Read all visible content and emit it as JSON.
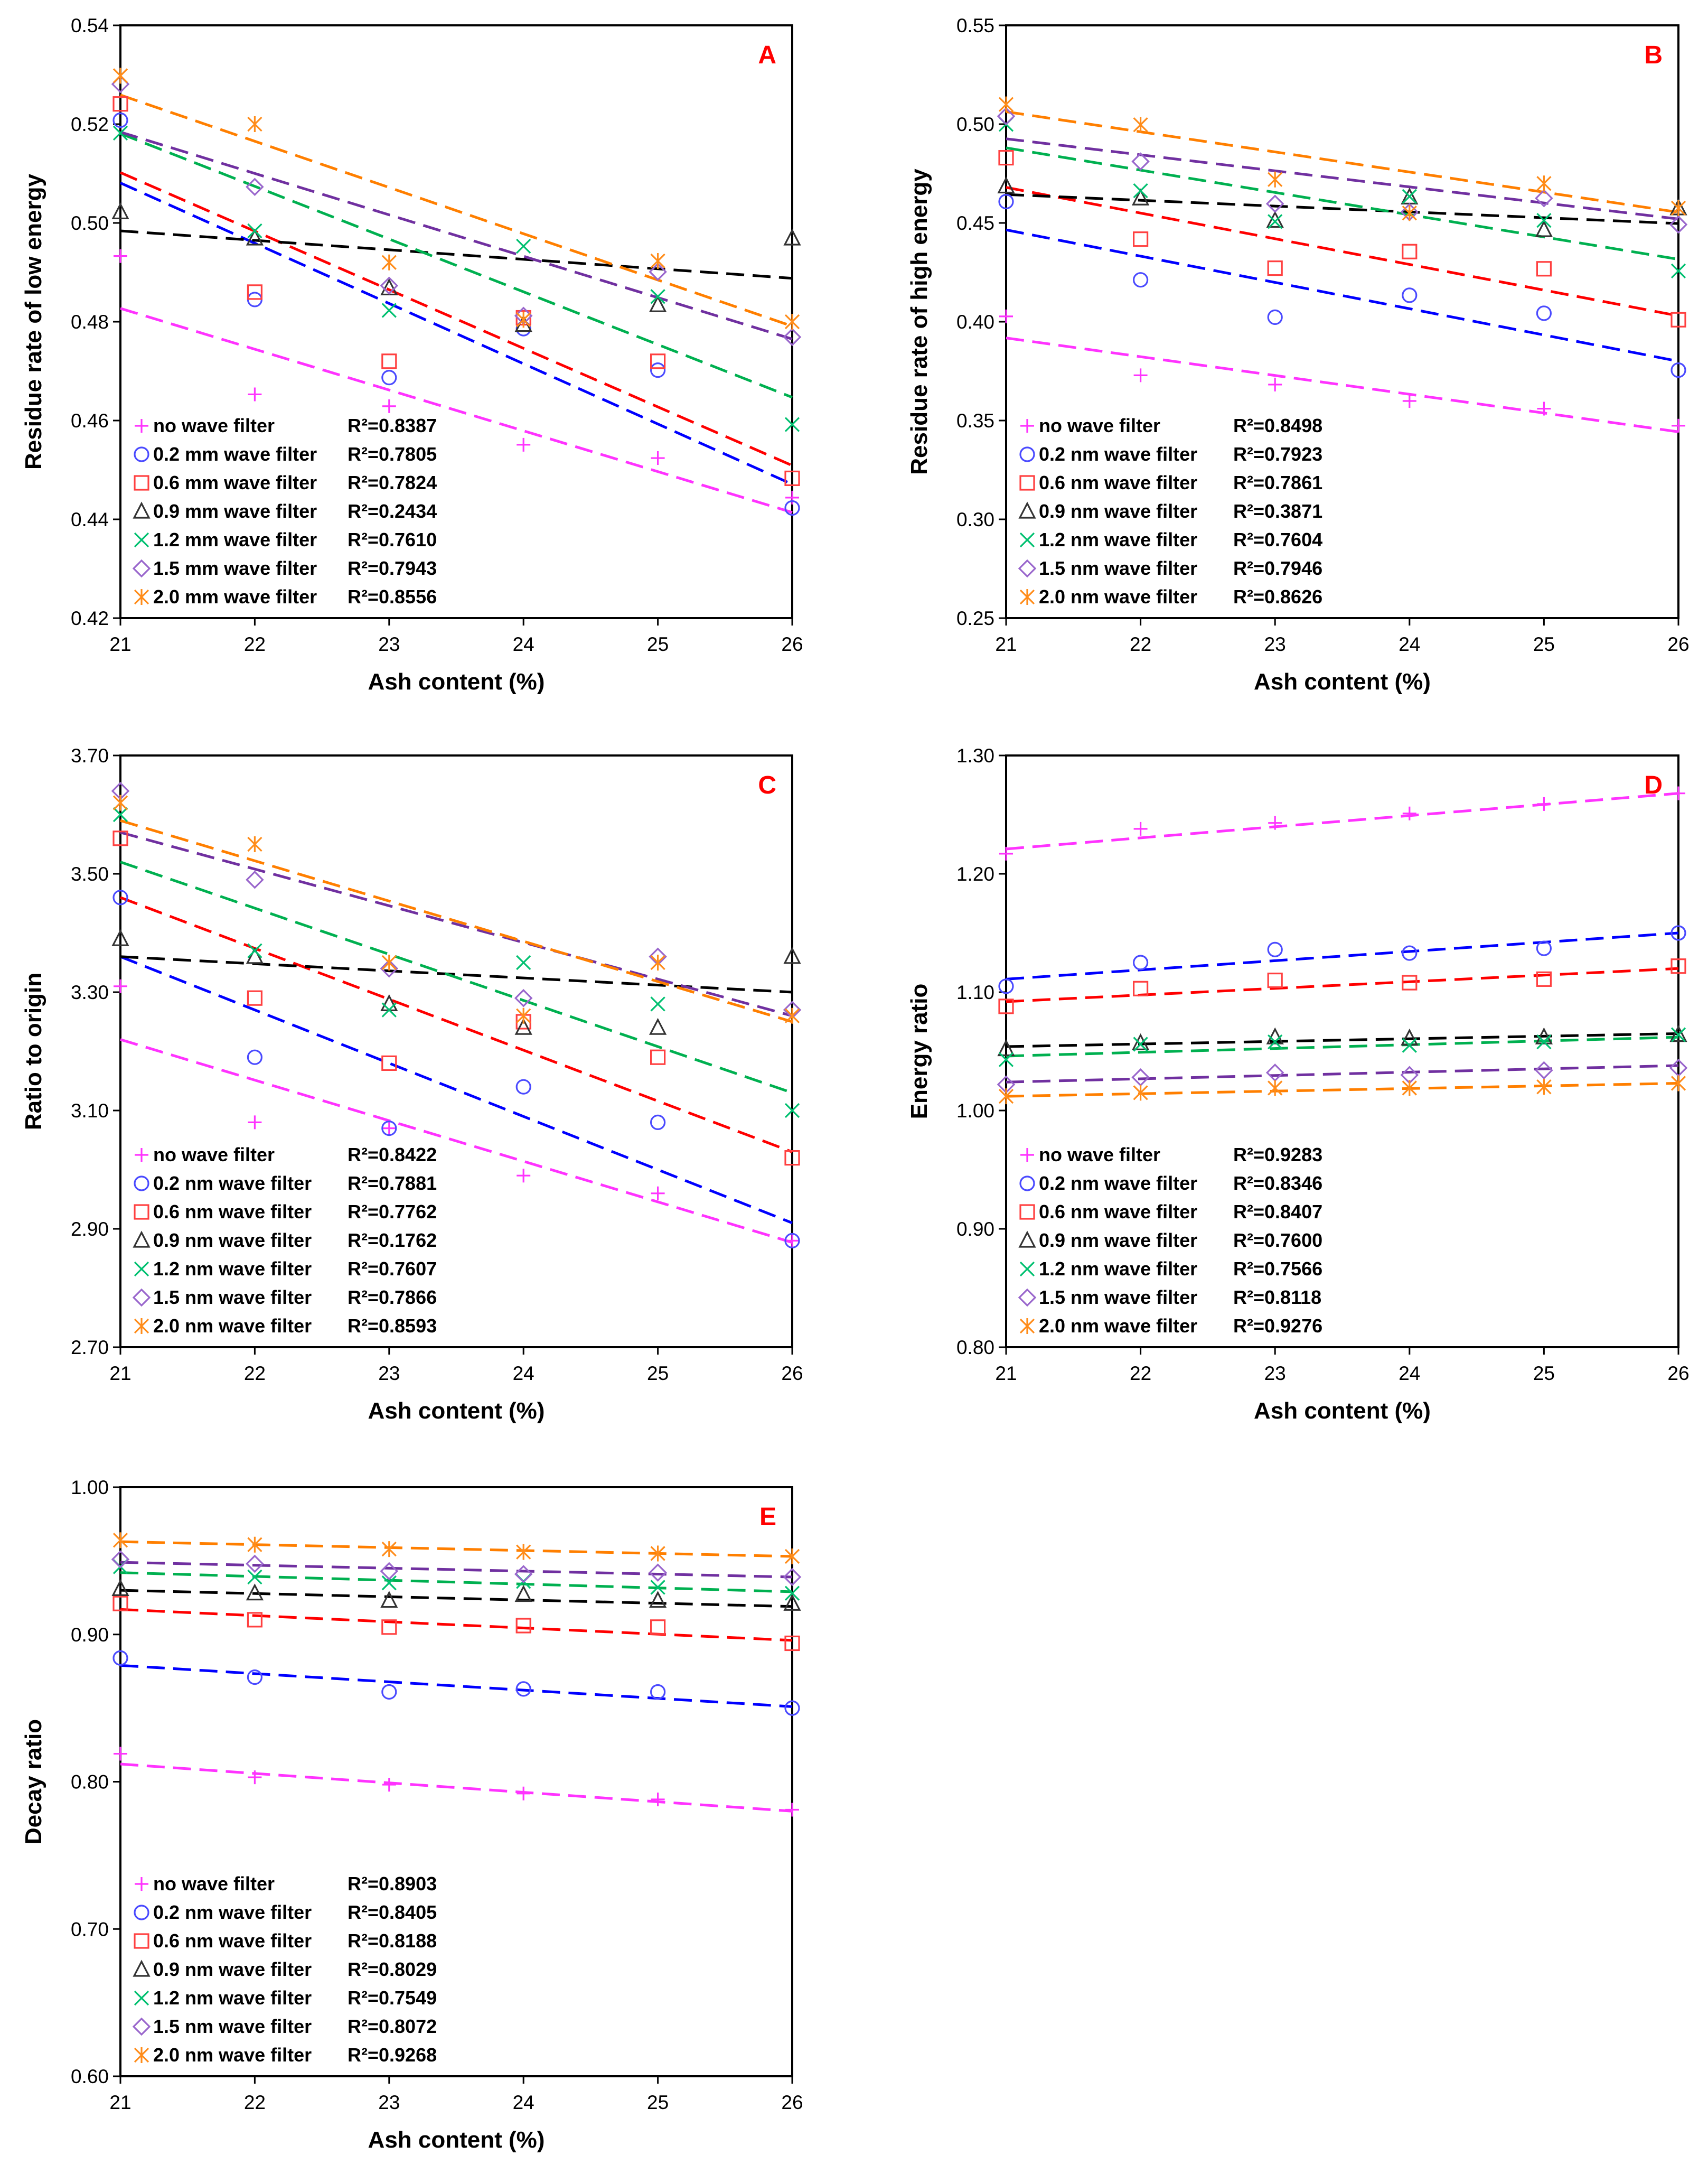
{
  "chart_data": [
    {
      "type": "scatter",
      "panel_letter": "A",
      "xlabel": "Ash content (%)",
      "ylabel": "Residue rate of low energy",
      "x": [
        21,
        22,
        23,
        24,
        25,
        26
      ],
      "xlim": [
        21,
        26
      ],
      "ylim": [
        0.42,
        0.54
      ],
      "y_ticks": [
        "0.42",
        "0.44",
        "0.46",
        "0.48",
        "0.50",
        "0.52",
        "0.54"
      ],
      "grid": false,
      "legend_position": "bottom-left",
      "series": [
        {
          "name": "no wave filter",
          "r2": "R²=0.8387",
          "values": [
            0.4933,
            0.4653,
            0.4629,
            0.4551,
            0.4524,
            0.4444
          ],
          "trend": [
            0.4827,
            0.4414
          ]
        },
        {
          "name": "0.2 mm wave filter",
          "r2": "R²=0.7805",
          "values": [
            0.5208,
            0.4845,
            0.4687,
            0.4786,
            0.4702,
            0.4423
          ],
          "trend": [
            0.5081,
            0.4471
          ]
        },
        {
          "name": "0.6 mm wave filter",
          "r2": "R²=0.7824",
          "values": [
            0.5241,
            0.486,
            0.472,
            0.4808,
            0.472,
            0.4483
          ],
          "trend": [
            0.5102,
            0.4509
          ]
        },
        {
          "name": "0.9 mm wave filter",
          "r2": "R²=0.2434",
          "values": [
            0.5022,
            0.4969,
            0.4868,
            0.4794,
            0.4834,
            0.4969
          ],
          "trend": [
            0.4984,
            0.4888
          ]
        },
        {
          "name": "1.2 mm wave filter",
          "r2": "R²=0.7610",
          "values": [
            0.5182,
            0.4984,
            0.4823,
            0.4953,
            0.4851,
            0.4592
          ],
          "trend": [
            0.5181,
            0.4647
          ]
        },
        {
          "name": "1.5 mm wave filter",
          "r2": "R²=0.7943",
          "values": [
            0.5281,
            0.5073,
            0.4873,
            0.4812,
            0.4901,
            0.4769
          ],
          "trend": [
            0.5184,
            0.4765
          ]
        },
        {
          "name": "2.0 mm wave filter",
          "r2": "R²=0.8556",
          "values": [
            0.5298,
            0.52,
            0.492,
            0.4804,
            0.4923,
            0.48
          ],
          "trend": [
            0.5259,
            0.4791
          ]
        }
      ]
    },
    {
      "type": "scatter",
      "panel_letter": "B",
      "xlabel": "Ash content (%)",
      "ylabel": "Residue rate of high energy",
      "x": [
        21,
        22,
        23,
        24,
        25,
        26
      ],
      "xlim": [
        21,
        26
      ],
      "ylim": [
        0.25,
        0.55
      ],
      "y_ticks": [
        "0.25",
        "0.30",
        "0.35",
        "0.40",
        "0.45",
        "0.50",
        "0.55"
      ],
      "grid": false,
      "legend_position": "bottom-left",
      "series": [
        {
          "name": "no wave filter",
          "r2": "R²=0.8498",
          "values": [
            0.4027,
            0.3729,
            0.3682,
            0.3599,
            0.356,
            0.3474
          ],
          "trend": [
            0.3918,
            0.3443
          ]
        },
        {
          "name": "0.2 nm wave filter",
          "r2": "R²=0.7923",
          "values": [
            0.4608,
            0.4212,
            0.4023,
            0.4134,
            0.4043,
            0.3755
          ],
          "trend": [
            0.4465,
            0.38
          ]
        },
        {
          "name": "0.6 nm wave filter",
          "r2": "R²=0.7861",
          "values": [
            0.483,
            0.4418,
            0.4271,
            0.4355,
            0.4268,
            0.401
          ],
          "trend": [
            0.468,
            0.403
          ]
        },
        {
          "name": "0.9 nm wave filter",
          "r2": "R²=0.3871",
          "values": [
            0.4686,
            0.4625,
            0.4512,
            0.463,
            0.4465,
            0.4575
          ],
          "trend": [
            0.4644,
            0.4497
          ]
        },
        {
          "name": "1.2 nm wave filter",
          "r2": "R²=0.7604",
          "values": [
            0.4999,
            0.4663,
            0.4507,
            0.4634,
            0.4513,
            0.4257
          ],
          "trend": [
            0.488,
            0.4316
          ]
        },
        {
          "name": "1.5 nm wave filter",
          "r2": "R²=0.7946",
          "values": [
            0.504,
            0.4811,
            0.4597,
            0.4555,
            0.4625,
            0.4492
          ],
          "trend": [
            0.4926,
            0.452
          ]
        },
        {
          "name": "2.0 nm wave filter",
          "r2": "R²=0.8626",
          "values": [
            0.51,
            0.4997,
            0.472,
            0.455,
            0.47,
            0.4575
          ],
          "trend": [
            0.5063,
            0.4554
          ]
        }
      ]
    },
    {
      "type": "scatter",
      "panel_letter": "C",
      "xlabel": "Ash content (%)",
      "ylabel": "Ratio to origin",
      "x": [
        21,
        22,
        23,
        24,
        25,
        26
      ],
      "xlim": [
        21,
        26
      ],
      "ylim": [
        2.7,
        3.7
      ],
      "y_ticks": [
        "2.70",
        "2.90",
        "3.10",
        "3.30",
        "3.50",
        "3.70"
      ],
      "grid": false,
      "legend_position": "bottom-left",
      "series": [
        {
          "name": "no wave filter",
          "r2": "R²=0.8422",
          "values": [
            3.31,
            3.08,
            3.07,
            2.99,
            2.96,
            2.88
          ],
          "trend": [
            3.22,
            2.877
          ]
        },
        {
          "name": "0.2 nm wave filter",
          "r2": "R²=0.7881",
          "values": [
            3.46,
            3.19,
            3.07,
            3.14,
            3.08,
            2.88
          ],
          "trend": [
            3.36,
            2.91
          ]
        },
        {
          "name": "0.6 nm wave filter",
          "r2": "R²=0.7762",
          "values": [
            3.56,
            3.29,
            3.18,
            3.25,
            3.19,
            3.02
          ],
          "trend": [
            3.46,
            3.03
          ]
        },
        {
          "name": "0.9 nm wave filter",
          "r2": "R²=0.1762",
          "values": [
            3.39,
            3.36,
            3.28,
            3.24,
            3.24,
            3.36
          ],
          "trend": [
            3.36,
            3.3
          ]
        },
        {
          "name": "1.2 nm wave filter",
          "r2": "R²=0.7607",
          "values": [
            3.6,
            3.37,
            3.27,
            3.35,
            3.28,
            3.1
          ],
          "trend": [
            3.52,
            3.13
          ]
        },
        {
          "name": "1.5 nm wave filter",
          "r2": "R²=0.7866",
          "values": [
            3.64,
            3.49,
            3.34,
            3.29,
            3.36,
            3.27
          ],
          "trend": [
            3.57,
            3.26
          ]
        },
        {
          "name": "2.0 nm wave filter",
          "r2": "R²=0.8593",
          "values": [
            3.62,
            3.55,
            3.35,
            3.26,
            3.35,
            3.26
          ],
          "trend": [
            3.59,
            3.25
          ]
        }
      ]
    },
    {
      "type": "scatter",
      "panel_letter": "D",
      "xlabel": "Ash content (%)",
      "ylabel": "Energy ratio",
      "x": [
        21,
        22,
        23,
        24,
        25,
        26
      ],
      "xlim": [
        21,
        26
      ],
      "ylim": [
        0.8,
        1.3
      ],
      "y_ticks": [
        "0.80",
        "0.90",
        "1.00",
        "1.10",
        "1.20",
        "1.30"
      ],
      "grid": false,
      "legend_position": "bottom-left",
      "series": [
        {
          "name": "no wave filter",
          "r2": "R²=0.9283",
          "values": [
            1.217,
            1.238,
            1.243,
            1.251,
            1.259,
            1.268
          ],
          "trend": [
            1.221,
            1.268
          ]
        },
        {
          "name": "0.2 nm wave filter",
          "r2": "R²=0.8346",
          "values": [
            1.105,
            1.125,
            1.136,
            1.133,
            1.137,
            1.15
          ],
          "trend": [
            1.111,
            1.15
          ]
        },
        {
          "name": "0.6 nm wave filter",
          "r2": "R²=0.8407",
          "values": [
            1.088,
            1.103,
            1.11,
            1.108,
            1.111,
            1.122
          ],
          "trend": [
            1.092,
            1.12
          ]
        },
        {
          "name": "0.9 nm wave filter",
          "r2": "R²=0.7600",
          "values": [
            1.052,
            1.057,
            1.062,
            1.061,
            1.062,
            1.064
          ],
          "trend": [
            1.054,
            1.065
          ]
        },
        {
          "name": "1.2 nm wave filter",
          "r2": "R²=0.7566",
          "values": [
            1.043,
            1.056,
            1.058,
            1.055,
            1.058,
            1.064
          ],
          "trend": [
            1.046,
            1.062
          ]
        },
        {
          "name": "1.5 nm wave filter",
          "r2": "R²=0.8118",
          "values": [
            1.022,
            1.028,
            1.032,
            1.03,
            1.034,
            1.036
          ],
          "trend": [
            1.024,
            1.038
          ]
        },
        {
          "name": "2.0 nm wave filter",
          "r2": "R²=0.9276",
          "values": [
            1.012,
            1.015,
            1.019,
            1.019,
            1.02,
            1.023
          ],
          "trend": [
            1.012,
            1.023
          ]
        }
      ]
    },
    {
      "type": "scatter",
      "panel_letter": "E",
      "xlabel": "Ash content (%)",
      "ylabel": "Decay ratio",
      "x": [
        21,
        22,
        23,
        24,
        25,
        26
      ],
      "xlim": [
        21,
        26
      ],
      "ylim": [
        0.6,
        1.0
      ],
      "y_ticks": [
        "0.60",
        "0.70",
        "0.80",
        "0.90",
        "1.00"
      ],
      "grid": false,
      "legend_position": "bottom-left",
      "series": [
        {
          "name": "no wave filter",
          "r2": "R²=0.8903",
          "values": [
            0.819,
            0.803,
            0.798,
            0.792,
            0.788,
            0.781
          ],
          "trend": [
            0.812,
            0.78
          ]
        },
        {
          "name": "0.2 nm wave filter",
          "r2": "R²=0.8405",
          "values": [
            0.884,
            0.871,
            0.861,
            0.863,
            0.861,
            0.85
          ],
          "trend": [
            0.879,
            0.851
          ]
        },
        {
          "name": "0.6 nm wave filter",
          "r2": "R²=0.8188",
          "values": [
            0.921,
            0.91,
            0.905,
            0.906,
            0.905,
            0.894
          ],
          "trend": [
            0.917,
            0.896
          ]
        },
        {
          "name": "0.9 nm wave filter",
          "r2": "R²=0.8029",
          "values": [
            0.931,
            0.928,
            0.923,
            0.927,
            0.923,
            0.921
          ],
          "trend": [
            0.93,
            0.919
          ]
        },
        {
          "name": "1.2 nm wave filter",
          "r2": "R²=0.7549",
          "values": [
            0.946,
            0.939,
            0.935,
            0.936,
            0.932,
            0.928
          ],
          "trend": [
            0.942,
            0.929
          ]
        },
        {
          "name": "1.5 nm wave filter",
          "r2": "R²=0.8072",
          "values": [
            0.951,
            0.948,
            0.943,
            0.941,
            0.942,
            0.939
          ],
          "trend": [
            0.949,
            0.939
          ]
        },
        {
          "name": "2.0 nm wave filter",
          "r2": "R²=0.9268",
          "values": [
            0.964,
            0.961,
            0.958,
            0.956,
            0.955,
            0.953
          ],
          "trend": [
            0.963,
            0.953
          ]
        }
      ]
    }
  ],
  "series_style": [
    {
      "color": "#ff33ff",
      "marker": "plus"
    },
    {
      "color": "#3333ff",
      "marker": "circle"
    },
    {
      "color": "#ff0000",
      "marker": "square"
    },
    {
      "color": "#000000",
      "marker": "triangle"
    },
    {
      "color": "#00b050",
      "marker": "x"
    },
    {
      "color": "#7030a0",
      "marker": "diamond"
    },
    {
      "color": "#ff7f00",
      "marker": "asterisk"
    }
  ],
  "trend_colors": [
    "#ff33ff",
    "#0000ff",
    "#ff0000",
    "#000000",
    "#00b050",
    "#7030a0",
    "#ff7f00"
  ],
  "marker_colors": [
    "#ff33ff",
    "#4a4aff",
    "#ff4040",
    "#333333",
    "#00c070",
    "#9966cc",
    "#ff8c1a"
  ],
  "panel_letter_color": "#ff0000"
}
